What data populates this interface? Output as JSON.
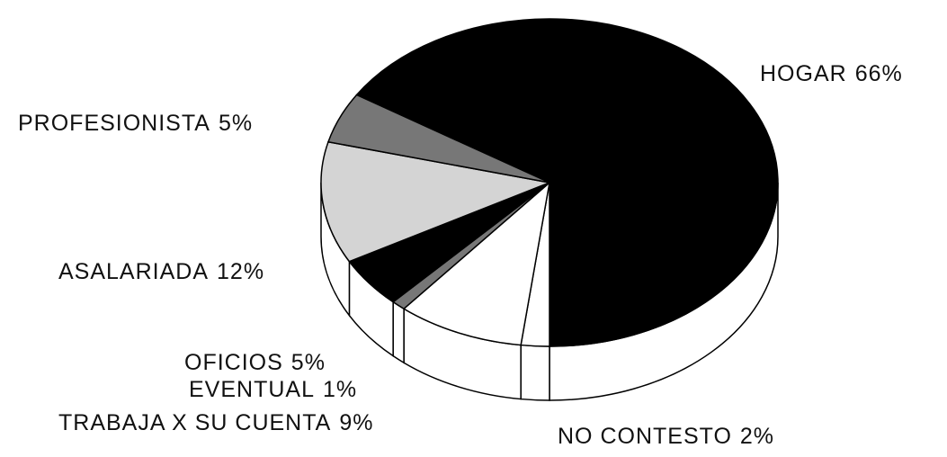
{
  "chart_data": {
    "type": "pie3d",
    "categories": [
      "HOGAR",
      "NO CONTESTO",
      "TRABAJA X SU CUENTA",
      "EVENTUAL",
      "OFICIOS",
      "ASALARIADA",
      "PROFESIONISTA"
    ],
    "values": [
      66,
      2,
      9,
      1,
      5,
      12,
      5
    ],
    "value_labels": [
      "66%",
      "2%",
      "9%",
      "1%",
      "5%",
      "12%",
      "5%"
    ],
    "colors": [
      "#000000",
      "#ffffff",
      "#ffffff",
      "#777777",
      "#000000",
      "#d4d4d4",
      "#777777"
    ]
  }
}
